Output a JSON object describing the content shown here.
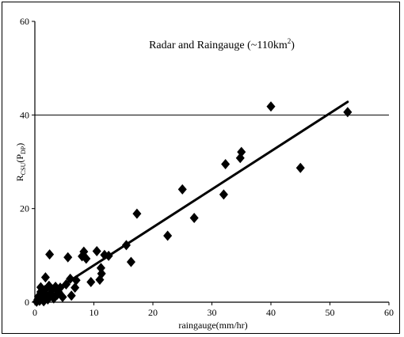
{
  "chart_data": {
    "type": "scatter",
    "title_main": "Radar and Raingauge (~110km",
    "title_sup": "2",
    "title_end": ")",
    "xlabel": "raingauge(mm/hr)",
    "ylabel_main": "R",
    "ylabel_sub1": "CSU",
    "ylabel_mid": "(P",
    "ylabel_sub2": "DP",
    "ylabel_end": ")",
    "xlim": [
      0,
      60
    ],
    "ylim": [
      0,
      60
    ],
    "xticks": [
      "0",
      "10",
      "20",
      "30",
      "40",
      "50",
      "60"
    ],
    "yticks": [
      "0",
      "20",
      "40",
      "60"
    ],
    "grid_y": [
      40
    ],
    "series": [
      {
        "marker": "diamond",
        "color": "#000000",
        "points": [
          [
            0.3,
            0.1
          ],
          [
            0.5,
            0.6
          ],
          [
            0.6,
            1.2
          ],
          [
            0.8,
            0.3
          ],
          [
            1.0,
            2.2
          ],
          [
            1.0,
            3.2
          ],
          [
            1.2,
            0.9
          ],
          [
            1.4,
            1.6
          ],
          [
            1.5,
            0.2
          ],
          [
            1.7,
            2.6
          ],
          [
            1.8,
            5.3
          ],
          [
            2.0,
            1.3
          ],
          [
            2.2,
            0.6
          ],
          [
            2.4,
            3.5
          ],
          [
            2.5,
            10.2
          ],
          [
            2.7,
            1.9
          ],
          [
            3.0,
            2.7
          ],
          [
            3.2,
            0.8
          ],
          [
            3.5,
            3.3
          ],
          [
            3.8,
            1.6
          ],
          [
            4.0,
            2.2
          ],
          [
            4.3,
            3.1
          ],
          [
            4.7,
            1.1
          ],
          [
            5.3,
            3.8
          ],
          [
            5.6,
            9.6
          ],
          [
            6.0,
            5.0
          ],
          [
            6.2,
            1.4
          ],
          [
            6.8,
            3.1
          ],
          [
            7.0,
            4.7
          ],
          [
            8.0,
            9.8
          ],
          [
            8.3,
            10.8
          ],
          [
            8.7,
            9.3
          ],
          [
            9.5,
            4.3
          ],
          [
            10.5,
            10.9
          ],
          [
            11.0,
            4.8
          ],
          [
            11.2,
            7.3
          ],
          [
            11.3,
            6.1
          ],
          [
            11.8,
            10.1
          ],
          [
            12.5,
            9.9
          ],
          [
            15.5,
            12.2
          ],
          [
            16.3,
            8.6
          ],
          [
            17.3,
            18.9
          ],
          [
            22.5,
            14.2
          ],
          [
            25.0,
            24.1
          ],
          [
            27.0,
            18.0
          ],
          [
            32.0,
            23.0
          ],
          [
            32.3,
            29.5
          ],
          [
            34.8,
            30.8
          ],
          [
            35.0,
            32.1
          ],
          [
            40.0,
            41.8
          ],
          [
            45.0,
            28.7
          ],
          [
            53.0,
            40.6
          ]
        ]
      }
    ],
    "trendline": {
      "x": [
        0.3,
        53.0
      ],
      "y": [
        0.0,
        42.8
      ]
    }
  }
}
